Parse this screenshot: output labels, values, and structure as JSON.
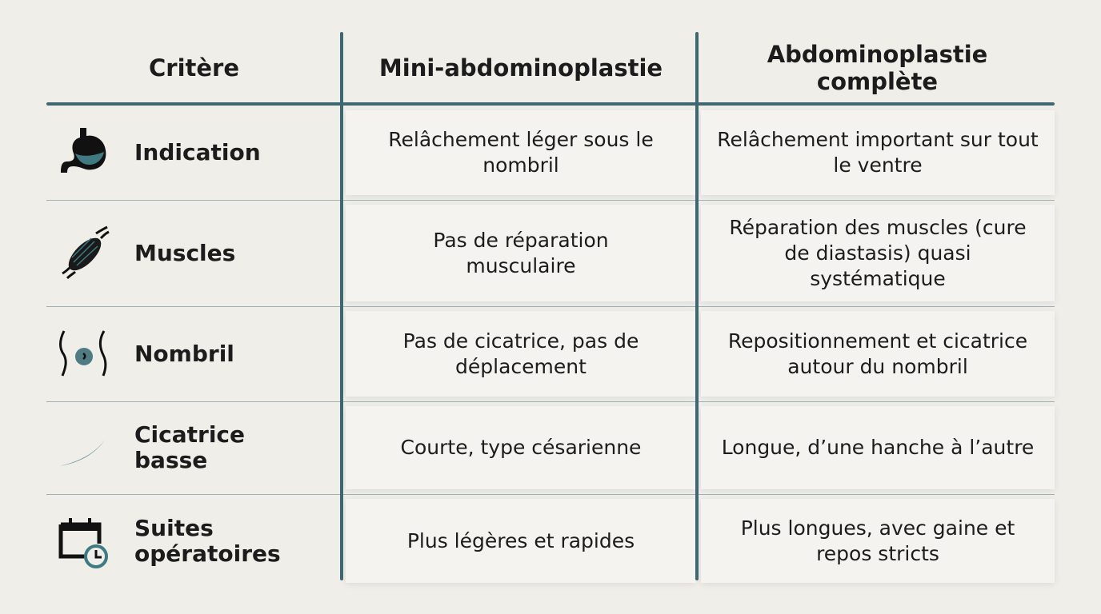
{
  "colors": {
    "accent": "#3d6871",
    "icon_fill": "#3f7a82",
    "background": "#efeee9"
  },
  "header": {
    "criterion": "Critère",
    "mini": "Mini-abdominoplastie",
    "full": "Abdominoplastie complète"
  },
  "rows": [
    {
      "icon": "stomach-icon",
      "criterion": "Indication",
      "mini": "Relâchement léger sous le nombril",
      "full": "Relâchement important sur tout le ventre"
    },
    {
      "icon": "muscle-icon",
      "criterion": "Muscles",
      "mini": "Pas de réparation musculaire",
      "full": "Réparation des muscles (cure de diastasis) quasi systématique"
    },
    {
      "icon": "navel-icon",
      "criterion": "Nombril",
      "mini": "Pas de cicatrice, pas de déplacement",
      "full": "Repositionnement et cicatrice autour du nombril"
    },
    {
      "icon": "scar-icon",
      "criterion": "Cicatrice basse",
      "mini": "Courte, type césarienne",
      "full": "Longue, d’une hanche à l’autre"
    },
    {
      "icon": "calendar-clock-icon",
      "criterion": "Suites opératoires",
      "mini": "Plus légères et rapides",
      "full": "Plus longues, avec gaine et repos stricts"
    }
  ]
}
